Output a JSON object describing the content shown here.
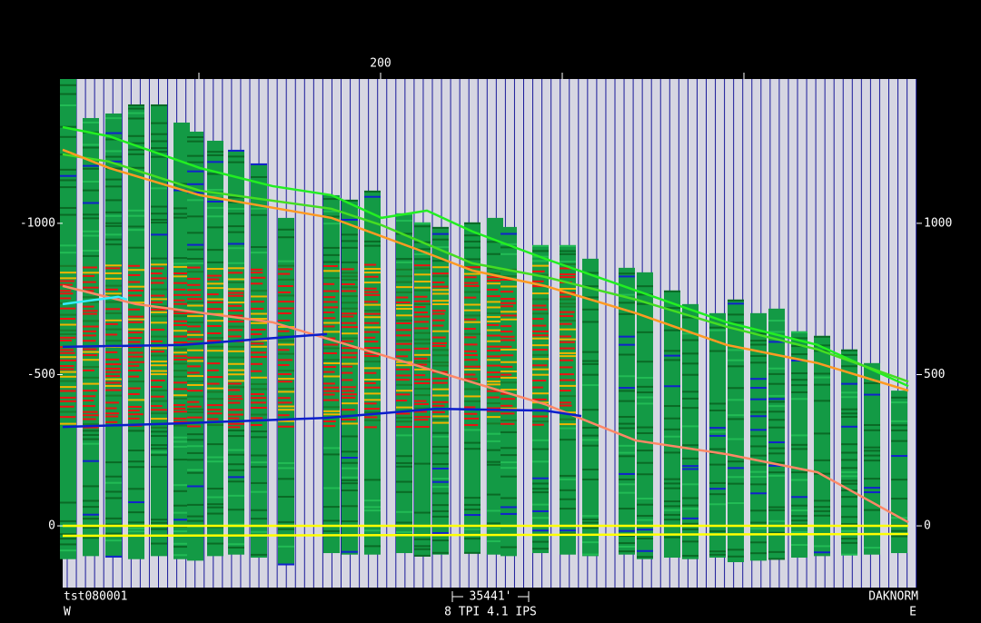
{
  "chart_data": {
    "type": "line",
    "footer_left": "tst080001",
    "footer_left_sub": "W",
    "footer_center": "35441'",
    "footer_center_sub": "8 TPI  4.1 IPS",
    "footer_right": "DAKNORM",
    "footer_right_sub": "E",
    "xlim": [
      25,
      495
    ],
    "labeled_xticks": [
      200
    ],
    "minor_xticks": [
      100,
      300,
      400
    ],
    "ylim": [
      204,
      -1477
    ],
    "yticks": [
      -1000,
      -500,
      0
    ],
    "y2lim": [
      -204,
      1477
    ],
    "y2ticks": [
      1000,
      500,
      0
    ],
    "wells": {
      "x": [
        28,
        40.5,
        53,
        65.5,
        78,
        90.5,
        98,
        109,
        120.5,
        133,
        148,
        173,
        183,
        195.5,
        213,
        223,
        233,
        250.5,
        263,
        270.5,
        288,
        303,
        315.5,
        335.5,
        345.5,
        360.5,
        370.5,
        385.5,
        395.5,
        408,
        418,
        430.5,
        443,
        458,
        470.5,
        485.5
      ],
      "top": [
        -1477,
        -1348,
        -1363,
        -1393,
        -1393,
        -1333,
        -1303,
        -1273,
        -1243,
        -1198,
        -1018,
        -1093,
        -1078,
        -1108,
        -1033,
        -1003,
        -988,
        -1003,
        -1018,
        -988,
        -928,
        -928,
        -883,
        -853,
        -838,
        -778,
        -733,
        -703,
        -748,
        -703,
        -718,
        -643,
        -628,
        -583,
        -538,
        -447
      ],
      "bottom": [
        110,
        100,
        105,
        110,
        100,
        110,
        115,
        100,
        95,
        105,
        125,
        90,
        95,
        95,
        90,
        100,
        95,
        90,
        95,
        100,
        90,
        95,
        100,
        95,
        110,
        105,
        110,
        105,
        120,
        115,
        110,
        105,
        100,
        95,
        95,
        90
      ],
      "color": "#139a45"
    },
    "series": [
      {
        "color": "#22ee22",
        "x": [
          25,
          50.5,
          100.5,
          140.5,
          173,
          200.5,
          225.5,
          250.5,
          290.5,
          340.5,
          390.5,
          440.5,
          490.5
        ],
        "values": [
          -1318,
          -1288,
          -1183,
          -1123,
          -1093,
          -1018,
          -1042,
          -973,
          -883,
          -778,
          -673,
          -598,
          -462
        ]
      },
      {
        "color": "#44dd22",
        "x": [
          25,
          50.5,
          100.5,
          173,
          200.5,
          250.5,
          290.5,
          340.5,
          390.5,
          440.5,
          490.5
        ],
        "values": [
          -1228,
          -1204,
          -1108,
          -1048,
          -994,
          -868,
          -823,
          -748,
          -658,
          -583,
          -477
        ]
      },
      {
        "color": "#ff9a22",
        "x": [
          25,
          50.5,
          100.5,
          173,
          220.5,
          250.5,
          290.5,
          340.5,
          390.5,
          440.5,
          490.5
        ],
        "values": [
          -1243,
          -1183,
          -1093,
          -1018,
          -913,
          -844,
          -793,
          -703,
          -598,
          -538,
          -447
        ]
      },
      {
        "color": "#ff8866",
        "x": [
          25,
          65.5,
          140.5,
          215.5,
          290.5,
          340.5,
          390.5,
          440.5,
          490.5
        ],
        "values": [
          -793,
          -733,
          -673,
          -538,
          -402,
          -282,
          -237,
          -177,
          -12
        ]
      },
      {
        "color": "#0a1ecc",
        "x": [
          25,
          90.5,
          170.5
        ],
        "values": [
          -592,
          -598,
          -634
        ]
      },
      {
        "color": "#0a1ecc",
        "x": [
          25,
          90.5,
          170.5,
          230.5,
          290.5,
          310.5
        ],
        "values": [
          -327,
          -339,
          -357,
          -387,
          -381,
          -363
        ]
      },
      {
        "color": "#33eeff",
        "x": [
          25,
          55.5,
          60.5
        ],
        "values": [
          -733,
          -757,
          -748
        ]
      },
      {
        "color": "#ffff00",
        "x": [
          25,
          490.5
        ],
        "values": [
          0,
          0
        ]
      },
      {
        "color": "#ffff00",
        "x": [
          25,
          490.5
        ],
        "values": [
          33,
          27
        ]
      }
    ]
  }
}
